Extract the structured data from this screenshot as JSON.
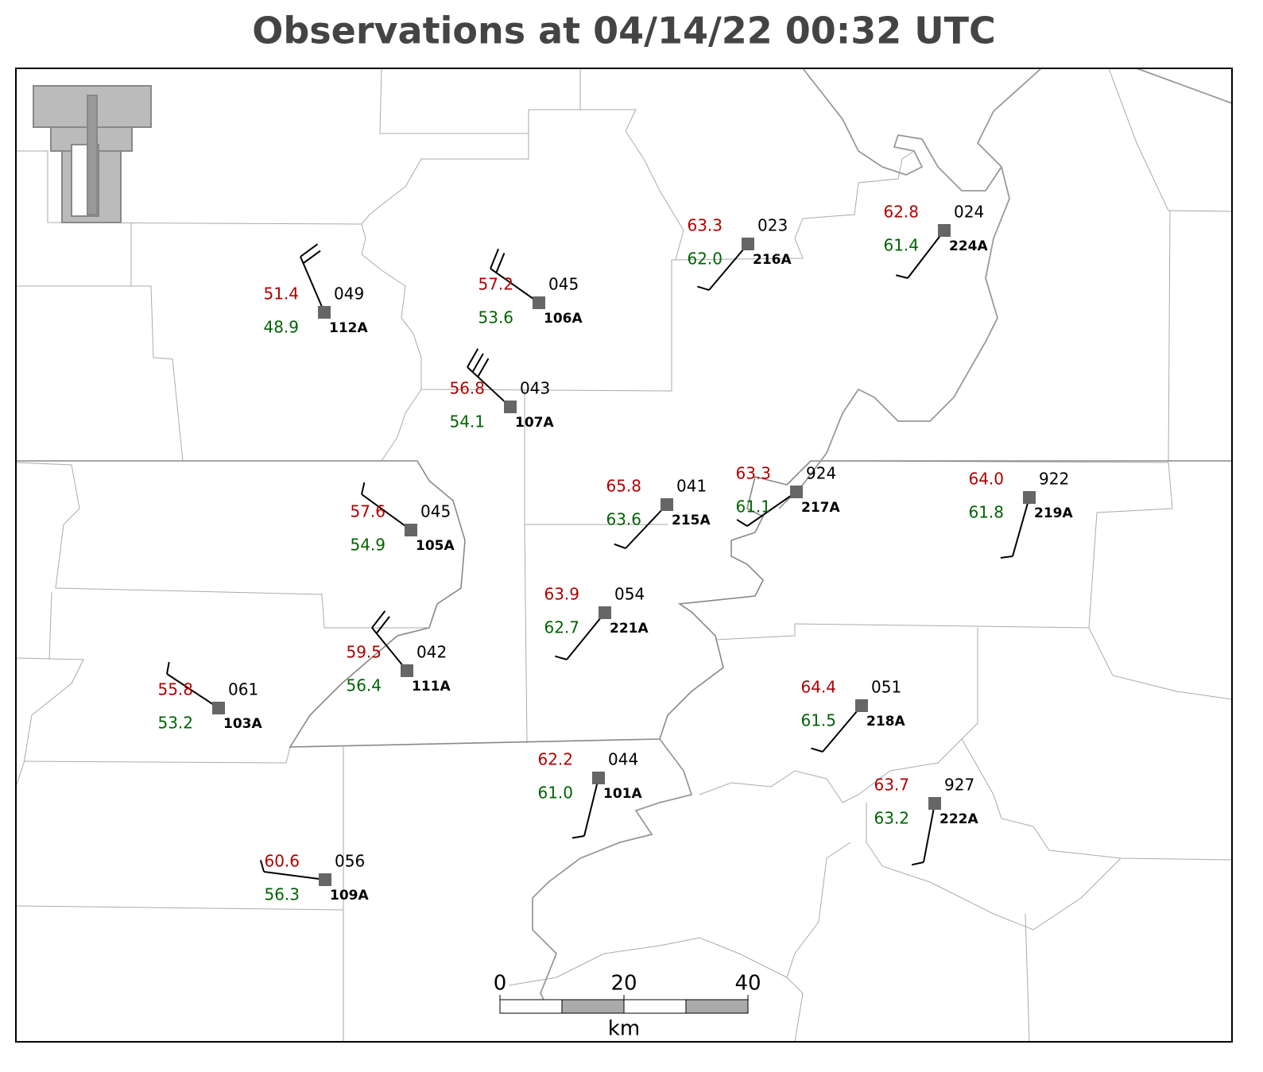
{
  "title": "Observations at 04/14/22 00:32 UTC",
  "stations": [
    {
      "temp": "51.4",
      "dewpoint": "48.9",
      "pressure": "049",
      "id": "112A"
    },
    {
      "temp": "57.2",
      "dewpoint": "53.6",
      "pressure": "045",
      "id": "106A"
    },
    {
      "temp": "56.8",
      "dewpoint": "54.1",
      "pressure": "043",
      "id": "107A"
    },
    {
      "temp": "63.3",
      "dewpoint": "62.0",
      "pressure": "023",
      "id": "216A"
    },
    {
      "temp": "62.8",
      "dewpoint": "61.4",
      "pressure": "024",
      "id": "224A"
    },
    {
      "temp": "57.6",
      "dewpoint": "54.9",
      "pressure": "045",
      "id": "105A"
    },
    {
      "temp": "65.8",
      "dewpoint": "63.6",
      "pressure": "041",
      "id": "215A"
    },
    {
      "temp": "63.3",
      "dewpoint": "61.1",
      "pressure": "924",
      "id": "217A"
    },
    {
      "temp": "64.0",
      "dewpoint": "61.8",
      "pressure": "922",
      "id": "219A"
    },
    {
      "temp": "63.9",
      "dewpoint": "62.7",
      "pressure": "054",
      "id": "221A"
    },
    {
      "temp": "59.5",
      "dewpoint": "56.4",
      "pressure": "042",
      "id": "111A"
    },
    {
      "temp": "55.8",
      "dewpoint": "53.2",
      "pressure": "061",
      "id": "103A"
    },
    {
      "temp": "64.4",
      "dewpoint": "61.5",
      "pressure": "051",
      "id": "218A"
    },
    {
      "temp": "62.2",
      "dewpoint": "61.0",
      "pressure": "044",
      "id": "101A"
    },
    {
      "temp": "63.7",
      "dewpoint": "63.2",
      "pressure": "927",
      "id": "222A"
    },
    {
      "temp": "60.6",
      "dewpoint": "56.3",
      "pressure": "056",
      "id": "109A"
    }
  ],
  "scale_bar": {
    "ticks": [
      0,
      20,
      40
    ],
    "unit": "km"
  }
}
